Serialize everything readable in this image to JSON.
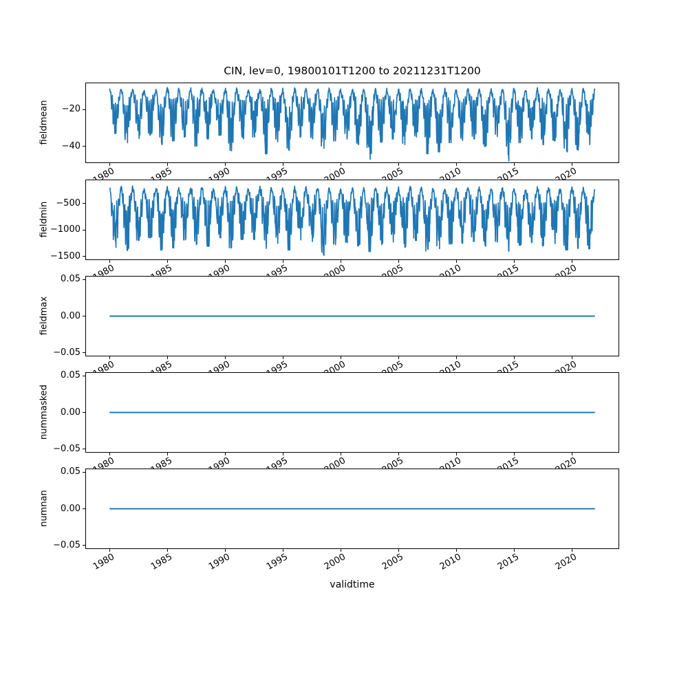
{
  "chart_data": {
    "type": "line",
    "title": "CIN, lev=0, 19800101T1200 to 20211231T1200",
    "xlabel": "validtime",
    "x_ticks": [
      1980,
      1985,
      1990,
      1995,
      2000,
      2005,
      2010,
      2015,
      2020
    ],
    "x_tick_labels": [
      "1980",
      "1985",
      "1990",
      "1995",
      "2000",
      "2005",
      "2010",
      "2015",
      "2020"
    ],
    "xlim": [
      1977.9,
      2024.1
    ],
    "time_range": [
      1980.0,
      2022.0
    ],
    "line_color": "#1f77b4",
    "background": "#ffffff",
    "grid": false,
    "legend": "none",
    "noise_seed": 19800101,
    "points_per_year": 48,
    "years": [
      1980,
      1981,
      1982,
      1983,
      1984,
      1985,
      1986,
      1987,
      1988,
      1989,
      1990,
      1991,
      1992,
      1993,
      1994,
      1995,
      1996,
      1997,
      1998,
      1999,
      2000,
      2001,
      2002,
      2003,
      2004,
      2005,
      2006,
      2007,
      2008,
      2009,
      2010,
      2011,
      2012,
      2013,
      2014,
      2015,
      2016,
      2017,
      2018,
      2019,
      2020,
      2021
    ],
    "subplots": [
      {
        "ylabel": "fieldmean",
        "series_kind": "seasonal-noisy",
        "ylim": [
          -49,
          -5.5
        ],
        "yticks": [
          -20,
          -40
        ],
        "ytick_labels": [
          "−20",
          "−40"
        ],
        "yearly_max": [
          -9.2,
          -8.8,
          -9.5,
          -10.1,
          -8.6,
          -9.0,
          -9.8,
          -8.7,
          -9.3,
          -10.0,
          -8.5,
          -9.4,
          -9.9,
          -8.8,
          -9.1,
          -10.2,
          -8.6,
          -9.6,
          -8.9,
          -9.2,
          -10.0,
          -8.7,
          -9.5,
          -8.8,
          -9.7,
          -9.0,
          -8.6,
          -9.3,
          -10.1,
          -8.9,
          -9.4,
          -8.7,
          -9.8,
          -9.1,
          -8.8,
          -9.5,
          -10.0,
          -8.6,
          -9.2,
          -9.7,
          -8.9,
          -9.3
        ],
        "yearly_min": [
          -33,
          -38,
          -36,
          -34,
          -39,
          -37,
          -35,
          -40,
          -36,
          -34,
          -43,
          -36,
          -35,
          -44,
          -38,
          -42,
          -35,
          -36,
          -41,
          -37,
          -36,
          -39,
          -47,
          -38,
          -36,
          -39,
          -35,
          -44,
          -43,
          -38,
          -37,
          -36,
          -40,
          -35,
          -48,
          -38,
          -36,
          -39,
          -37,
          -43,
          -42,
          -39
        ]
      },
      {
        "ylabel": "fieldmin",
        "series_kind": "seasonal-noisy",
        "ylim": [
          -1570,
          -50
        ],
        "yticks": [
          -500,
          -1000,
          -1500
        ],
        "ytick_labels": [
          "−500",
          "−1000",
          "−1500"
        ],
        "yearly_max": [
          -210,
          -195,
          -230,
          -250,
          -190,
          -205,
          -240,
          -195,
          -215,
          -245,
          -190,
          -220,
          -235,
          -200,
          -210,
          -250,
          -195,
          -225,
          -205,
          -215,
          -240,
          -200,
          -225,
          -205,
          -235,
          -210,
          -195,
          -220,
          -245,
          -208,
          -222,
          -198,
          -238,
          -212,
          -202,
          -228,
          -242,
          -196,
          -216,
          -232,
          -206,
          -218
        ],
        "yearly_min": [
          -1330,
          -1390,
          -1200,
          -1150,
          -1380,
          -1340,
          -1190,
          -1280,
          -1310,
          -1150,
          -1340,
          -1200,
          -1180,
          -1350,
          -1260,
          -1380,
          -1200,
          -1220,
          -1500,
          -1280,
          -1240,
          -1300,
          -1420,
          -1280,
          -1230,
          -1330,
          -1200,
          -1400,
          -1360,
          -1270,
          -1250,
          -1220,
          -1310,
          -1230,
          -1410,
          -1290,
          -1240,
          -1320,
          -1260,
          -1380,
          -1350,
          -1360
        ]
      },
      {
        "ylabel": "fieldmax",
        "series_kind": "constant",
        "value": 0.0,
        "ylim": [
          -0.055,
          0.055
        ],
        "yticks": [
          0.05,
          0.0,
          -0.05
        ],
        "ytick_labels": [
          "0.05",
          "0.00",
          "−0.05"
        ]
      },
      {
        "ylabel": "nummasked",
        "series_kind": "constant",
        "value": 0.0,
        "ylim": [
          -0.055,
          0.055
        ],
        "yticks": [
          0.05,
          0.0,
          -0.05
        ],
        "ytick_labels": [
          "0.05",
          "0.00",
          "−0.05"
        ]
      },
      {
        "ylabel": "numnan",
        "series_kind": "constant",
        "value": 0.0,
        "ylim": [
          -0.055,
          0.055
        ],
        "yticks": [
          0.05,
          0.0,
          -0.05
        ],
        "ytick_labels": [
          "0.05",
          "0.00",
          "−0.05"
        ]
      }
    ]
  }
}
